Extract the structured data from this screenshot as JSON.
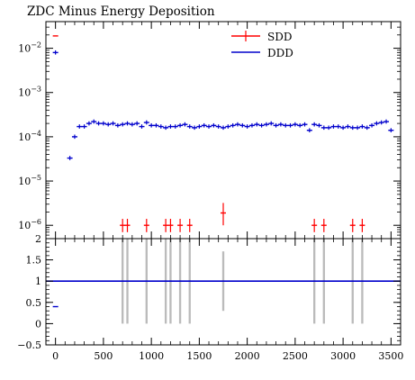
{
  "chart_data": {
    "type": "scatter",
    "title": "ZDC Minus Energy Deposition",
    "xlabel": "",
    "ylabel": "",
    "xlim": [
      -100,
      3600
    ],
    "x_ticks": [
      0,
      500,
      1000,
      1500,
      2000,
      2500,
      3000,
      3500
    ],
    "x_tick_labels": [
      "0",
      "500",
      "1000",
      "1500",
      "2000",
      "2500",
      "3000",
      "3500"
    ],
    "legend": {
      "placement": "top-center",
      "entries": [
        "SDD",
        "DDD"
      ]
    },
    "colors": {
      "SDD": "#ff0000",
      "DDD": "#0000cc",
      "ratio_band": "#bbbbbb",
      "ratio_line": "#0000cc"
    },
    "top_panel": {
      "yscale": "log",
      "ylim": [
        5e-07,
        0.04
      ],
      "y_ticks": [
        1e-06,
        1e-05,
        0.0001,
        0.001,
        0.01
      ],
      "y_tick_labels": [
        {
          "base": "10",
          "exp": "−6"
        },
        {
          "base": "10",
          "exp": "−5"
        },
        {
          "base": "10",
          "exp": "−4"
        },
        {
          "base": "10",
          "exp": "−3"
        },
        {
          "base": "10",
          "exp": "−2"
        }
      ],
      "series": [
        {
          "name": "DDD",
          "x": [
            0,
            150,
            200,
            250,
            300,
            350,
            400,
            450,
            500,
            550,
            600,
            650,
            700,
            750,
            800,
            850,
            900,
            950,
            1000,
            1050,
            1100,
            1150,
            1200,
            1250,
            1300,
            1350,
            1400,
            1450,
            1500,
            1550,
            1600,
            1650,
            1700,
            1750,
            1800,
            1850,
            1900,
            1950,
            2000,
            2050,
            2100,
            2150,
            2200,
            2250,
            2300,
            2350,
            2400,
            2450,
            2500,
            2550,
            2600,
            2650,
            2700,
            2750,
            2800,
            2850,
            2900,
            2950,
            3000,
            3050,
            3100,
            3150,
            3200,
            3250,
            3300,
            3350,
            3400,
            3450,
            3500
          ],
          "y": [
            0.008,
            3.3e-05,
            0.0001,
            0.00017,
            0.00017,
            0.0002,
            0.00022,
            0.0002,
            0.0002,
            0.00019,
            0.0002,
            0.00018,
            0.00019,
            0.0002,
            0.00019,
            0.0002,
            0.00017,
            0.00021,
            0.00018,
            0.00018,
            0.00017,
            0.00016,
            0.00017,
            0.00017,
            0.00018,
            0.00019,
            0.00017,
            0.00016,
            0.00017,
            0.00018,
            0.00017,
            0.00018,
            0.00017,
            0.00016,
            0.00017,
            0.00018,
            0.00019,
            0.00018,
            0.00017,
            0.00018,
            0.00019,
            0.00018,
            0.00019,
            0.0002,
            0.00018,
            0.00019,
            0.00018,
            0.00018,
            0.00019,
            0.00018,
            0.00019,
            0.00014,
            0.00019,
            0.00018,
            0.00016,
            0.00016,
            0.00017,
            0.00017,
            0.00016,
            0.00017,
            0.00016,
            0.00016,
            0.00017,
            0.00016,
            0.00018,
            0.0002,
            0.00021,
            0.00022,
            0.00014
          ]
        },
        {
          "name": "SDD",
          "x": [
            0,
            700,
            750,
            950,
            1150,
            1200,
            1300,
            1400,
            1750,
            2700,
            2800,
            3100,
            3200
          ],
          "y": [
            0.019,
            1e-06,
            1e-06,
            1e-06,
            1e-06,
            1e-06,
            1e-06,
            1e-06,
            1.9e-06,
            1e-06,
            1e-06,
            1e-06,
            1e-06
          ],
          "y_err_upper": [
            0,
            4e-07,
            4e-07,
            4e-07,
            4e-07,
            4e-07,
            4e-07,
            4e-07,
            1.3e-06,
            4e-07,
            4e-07,
            4e-07,
            4e-07
          ],
          "y_err_lower": [
            0,
            3e-07,
            3e-07,
            3e-07,
            3e-07,
            3e-07,
            3e-07,
            3e-07,
            9e-07,
            3e-07,
            3e-07,
            3e-07,
            3e-07
          ]
        }
      ]
    },
    "ratio_panel": {
      "ylim": [
        -0.5,
        2.0
      ],
      "y_ticks": [
        -0.5,
        0,
        0.5,
        1,
        1.5,
        2
      ],
      "y_tick_labels": [
        "−0.5",
        "0",
        "0.5",
        "1",
        "1.5",
        "2"
      ],
      "reference_line": 1,
      "bands": [
        {
          "x": 700,
          "low": 0,
          "high": 2
        },
        {
          "x": 750,
          "low": 0,
          "high": 2
        },
        {
          "x": 950,
          "low": 0,
          "high": 2
        },
        {
          "x": 1150,
          "low": 0,
          "high": 2
        },
        {
          "x": 1200,
          "low": 0,
          "high": 2
        },
        {
          "x": 1300,
          "low": 0,
          "high": 2
        },
        {
          "x": 1400,
          "low": 0,
          "high": 2
        },
        {
          "x": 1750,
          "low": 0.3,
          "high": 1.7
        },
        {
          "x": 2700,
          "low": 0,
          "high": 2
        },
        {
          "x": 2800,
          "low": 0,
          "high": 2
        },
        {
          "x": 3100,
          "low": 0,
          "high": 2
        },
        {
          "x": 3200,
          "low": 0,
          "high": 2
        }
      ],
      "outlier_points": [
        {
          "x": 0,
          "y": 0.4,
          "series": "DDD"
        }
      ]
    }
  }
}
